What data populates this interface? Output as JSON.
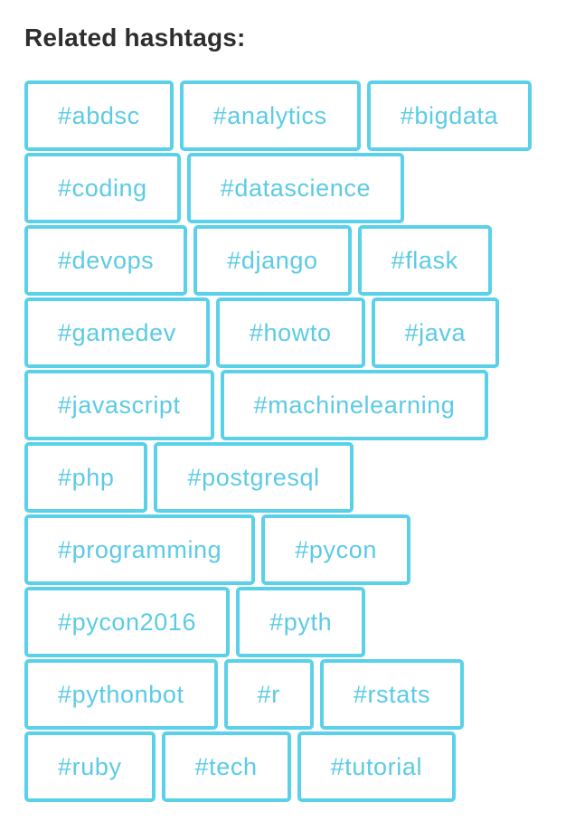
{
  "heading": "Related hashtags:",
  "accent_color": "#5bd1e9",
  "tags": [
    "#abdsc",
    "#analytics",
    "#bigdata",
    "#coding",
    "#datascience",
    "#devops",
    "#django",
    "#flask",
    "#gamedev",
    "#howto",
    "#java",
    "#javascript",
    "#machinelearning",
    "#php",
    "#postgresql",
    "#programming",
    "#pycon",
    "#pycon2016",
    "#pyth",
    "#pythonbot",
    "#r",
    "#rstats",
    "#ruby",
    "#tech",
    "#tutorial"
  ]
}
